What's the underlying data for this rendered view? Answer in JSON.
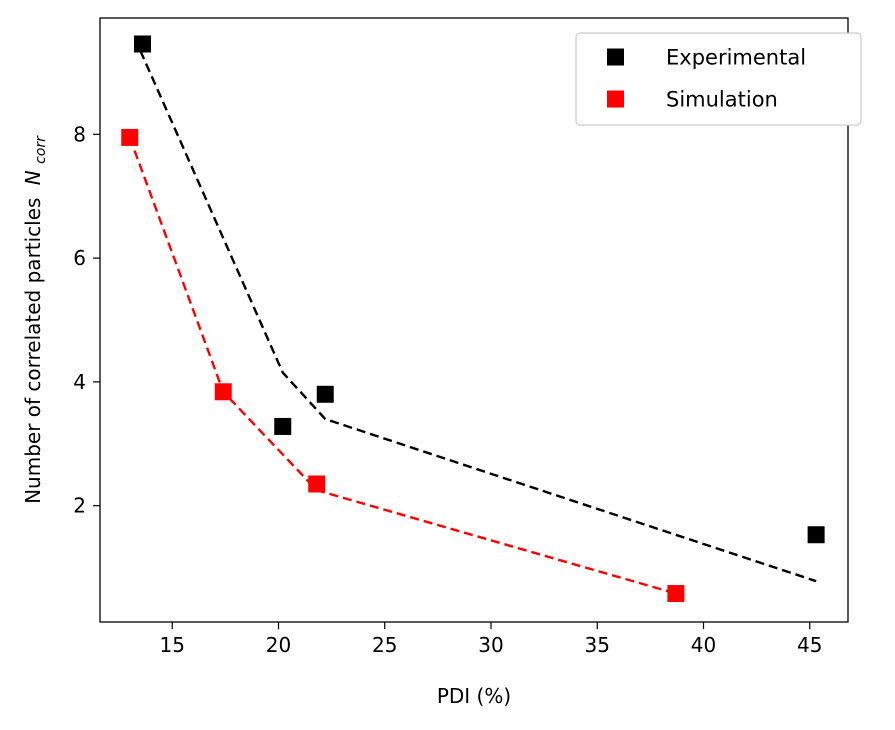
{
  "chart_data": {
    "type": "scatter",
    "xlabel": "PDI (%)",
    "ylabel": "Number of correlated particles",
    "ylabel_symbol": "N",
    "ylabel_subscript": "corr",
    "xlim": [
      11.6,
      46.8
    ],
    "ylim": [
      0.12,
      9.88
    ],
    "xticks": [
      15,
      20,
      25,
      30,
      35,
      40,
      45
    ],
    "yticks": [
      2,
      4,
      6,
      8
    ],
    "grid": false,
    "legend_position": "top-right",
    "series": [
      {
        "name": "Experimental",
        "color": "#000000",
        "marker": "square",
        "points": [
          [
            13.6,
            9.46
          ],
          [
            20.2,
            3.28
          ],
          [
            22.2,
            3.8
          ],
          [
            45.3,
            1.53
          ]
        ],
        "fit_line": [
          [
            13.5,
            9.35
          ],
          [
            20.2,
            4.15
          ],
          [
            22.2,
            3.4
          ],
          [
            45.3,
            0.78
          ]
        ]
      },
      {
        "name": "Simulation",
        "color": "#ff0000",
        "marker": "square",
        "points": [
          [
            13.0,
            7.95
          ],
          [
            17.4,
            3.84
          ],
          [
            21.8,
            2.35
          ],
          [
            38.7,
            0.58
          ]
        ],
        "fit_line": [
          [
            13.0,
            7.95
          ],
          [
            17.4,
            3.84
          ],
          [
            21.8,
            2.25
          ],
          [
            38.7,
            0.58
          ]
        ]
      }
    ]
  }
}
